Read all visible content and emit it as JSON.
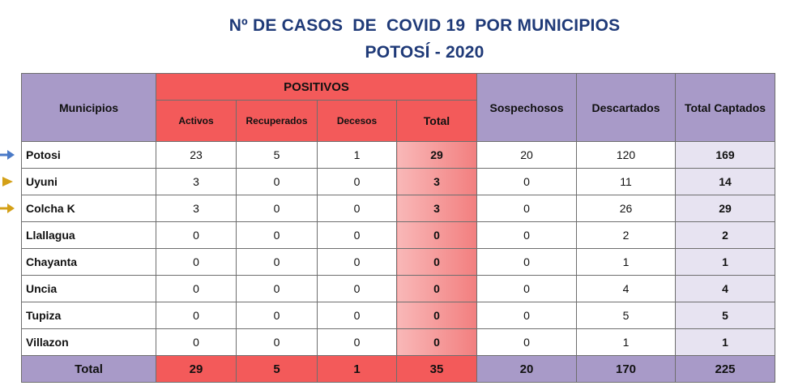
{
  "title": {
    "line1": "Nº DE CASOS  DE  COVID 19  POR MUNICIPIOS",
    "line2": "POTOSÍ - 2020"
  },
  "headers": {
    "municipios": "Municipios",
    "positivos": "POSITIVOS",
    "activos": "Activos",
    "recuperados": "Recuperados",
    "decesos": "Decesos",
    "total": "Total",
    "sospechosos": "Sospechosos",
    "descartados": "Descartados",
    "total_captados": "Total Captados"
  },
  "rows": [
    {
      "municipio": "Potosi",
      "activos": "23",
      "recuperados": "5",
      "decesos": "1",
      "total": "29",
      "sospechosos": "20",
      "descartados": "120",
      "total_captados": "169"
    },
    {
      "municipio": "Uyuni",
      "activos": "3",
      "recuperados": "0",
      "decesos": "0",
      "total": "3",
      "sospechosos": "0",
      "descartados": "11",
      "total_captados": "14"
    },
    {
      "municipio": "Colcha K",
      "activos": "3",
      "recuperados": "0",
      "decesos": "0",
      "total": "3",
      "sospechosos": "0",
      "descartados": "26",
      "total_captados": "29"
    },
    {
      "municipio": "Llallagua",
      "activos": "0",
      "recuperados": "0",
      "decesos": "0",
      "total": "0",
      "sospechosos": "0",
      "descartados": "2",
      "total_captados": "2"
    },
    {
      "municipio": "Chayanta",
      "activos": "0",
      "recuperados": "0",
      "decesos": "0",
      "total": "0",
      "sospechosos": "0",
      "descartados": "1",
      "total_captados": "1"
    },
    {
      "municipio": "Uncia",
      "activos": "0",
      "recuperados": "0",
      "decesos": "0",
      "total": "0",
      "sospechosos": "0",
      "descartados": "4",
      "total_captados": "4"
    },
    {
      "municipio": "Tupiza",
      "activos": "0",
      "recuperados": "0",
      "decesos": "0",
      "total": "0",
      "sospechosos": "0",
      "descartados": "5",
      "total_captados": "5"
    },
    {
      "municipio": "Villazon",
      "activos": "0",
      "recuperados": "0",
      "decesos": "0",
      "total": "0",
      "sospechosos": "0",
      "descartados": "1",
      "total_captados": "1"
    }
  ],
  "totals": {
    "label": "Total",
    "activos": "29",
    "recuperados": "5",
    "decesos": "1",
    "total": "35",
    "sospechosos": "20",
    "descartados": "170",
    "total_captados": "225"
  },
  "markers": [
    {
      "row": "Potosi",
      "icon": "arrow-right-icon",
      "color": "#4a7ac7"
    },
    {
      "row": "Uyuni",
      "icon": "triangle-right-icon",
      "color": "#d4a017"
    },
    {
      "row": "Colcha K",
      "icon": "arrow-right-icon",
      "color": "#d4a017"
    }
  ],
  "colors": {
    "title": "#1f3a78",
    "header_purple": "#a89ac8",
    "positivos_red": "#f35a5a",
    "total_captados_bg": "#e7e3f1"
  }
}
